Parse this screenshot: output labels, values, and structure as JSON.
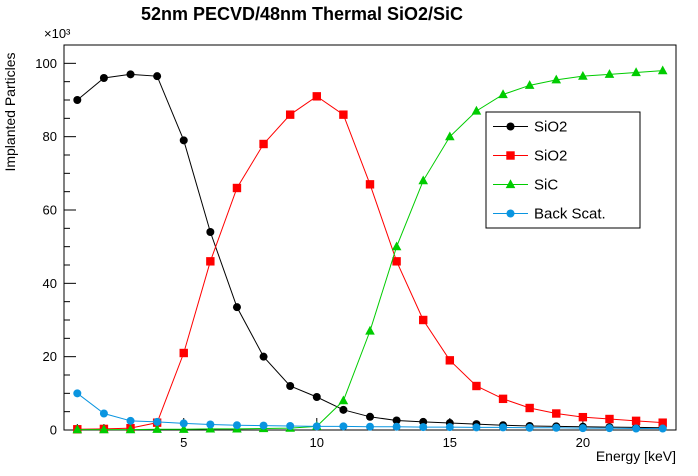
{
  "chart_data": {
    "type": "line",
    "title": "52nm PECVD/48nm Thermal SiO2/SiC",
    "xlabel": "Energy [keV]",
    "ylabel": "Implanted Particles",
    "y_multiplier": "×10³",
    "xlim": [
      0.5,
      23.5
    ],
    "ylim": [
      0,
      105
    ],
    "x_major_ticks": [
      5,
      10,
      15,
      20
    ],
    "y_major_ticks": [
      0,
      20,
      40,
      60,
      80,
      100
    ],
    "grid": false,
    "legend_position": "middle-right",
    "x": [
      1,
      2,
      3,
      4,
      5,
      6,
      7,
      8,
      9,
      10,
      11,
      12,
      13,
      14,
      15,
      16,
      17,
      18,
      19,
      20,
      21,
      22,
      23
    ],
    "series": [
      {
        "id": "sio2-pecvd",
        "name": "SiO2",
        "color": "#000000",
        "marker": "circle",
        "values": [
          90,
          96,
          97,
          96.5,
          79,
          54,
          33.5,
          20,
          12,
          9,
          5.5,
          3.6,
          2.6,
          2.2,
          1.9,
          1.6,
          1.3,
          1.1,
          1,
          0.9,
          0.8,
          0.7,
          0.6
        ]
      },
      {
        "id": "sio2-thermal",
        "name": "SiO2",
        "color": "#ff0000",
        "marker": "square",
        "values": [
          0.2,
          0.3,
          0.5,
          2,
          21,
          46,
          66,
          78,
          86,
          91,
          86,
          67,
          46,
          30,
          19,
          12,
          8.5,
          6,
          4.5,
          3.5,
          3,
          2.5,
          2
        ]
      },
      {
        "id": "sic",
        "name": "SiC",
        "color": "#00cc00",
        "marker": "triangle",
        "values": [
          0.1,
          0.1,
          0.1,
          0.2,
          0.2,
          0.3,
          0.3,
          0.4,
          0.5,
          1,
          8,
          27,
          50,
          68,
          80,
          87,
          91.5,
          94,
          95.5,
          96.5,
          97,
          97.5,
          98
        ]
      },
      {
        "id": "backscatter",
        "name": "Back Scat.",
        "color": "#0a95e0",
        "marker": "circle",
        "values": [
          10,
          4.5,
          2.5,
          2.2,
          1.8,
          1.5,
          1.3,
          1.2,
          1.1,
          1,
          1,
          0.9,
          0.9,
          0.8,
          0.8,
          0.7,
          0.7,
          0.6,
          0.6,
          0.5,
          0.5,
          0.4,
          0.4
        ]
      }
    ]
  }
}
